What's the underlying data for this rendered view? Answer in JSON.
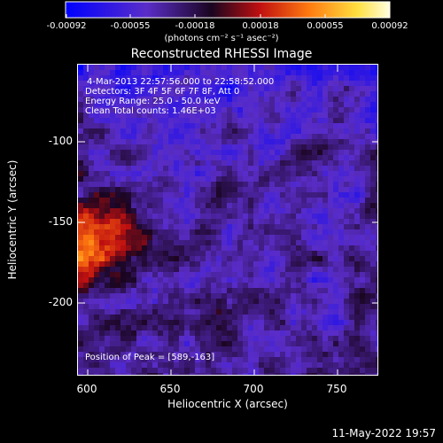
{
  "colorbar": {
    "ticks": [
      "-0.00092",
      "-0.00055",
      "-0.00018",
      "0.00018",
      "0.00055",
      "0.00092"
    ],
    "tick_values": [
      -0.00092,
      -0.00055,
      -0.00018,
      0.00018,
      0.00055,
      0.00092
    ],
    "units": "(photons cm⁻² s⁻¹ asec⁻²)",
    "colors": [
      "#0000ff",
      "#5a2dc8",
      "#1a0520",
      "#c01010",
      "#ff7a10",
      "#ffe040",
      "#ffffe0"
    ]
  },
  "chart_data": {
    "type": "heatmap",
    "title": "Reconstructed RHESSI Image",
    "xlabel": "Heliocentric X (arcsec)",
    "ylabel": "Heliocentric Y (arcsec)",
    "xlim": [
      585,
      775
    ],
    "ylim": [
      -245,
      -55
    ],
    "xticks": [
      "600",
      "650",
      "700",
      "750"
    ],
    "xtick_values": [
      600,
      650,
      700,
      750
    ],
    "yticks": [
      "-100",
      "-150",
      "-200"
    ],
    "ytick_values": [
      -100,
      -150,
      -200
    ],
    "peak_position": [
      589,
      -163
    ]
  },
  "info": {
    "line1": "4-Mar-2013 22:57:56.000 to 22:58:52.000",
    "line2": "Detectors: 3F 4F 5F 6F 7F 8F, Att 0",
    "line3": "Energy Range: 25.0 - 50.0 keV",
    "line4": "Clean     Total counts: 1.46E+03",
    "peak": "Position of Peak = [589,-163]"
  },
  "footer": {
    "date": "11-May-2022 19:57"
  }
}
